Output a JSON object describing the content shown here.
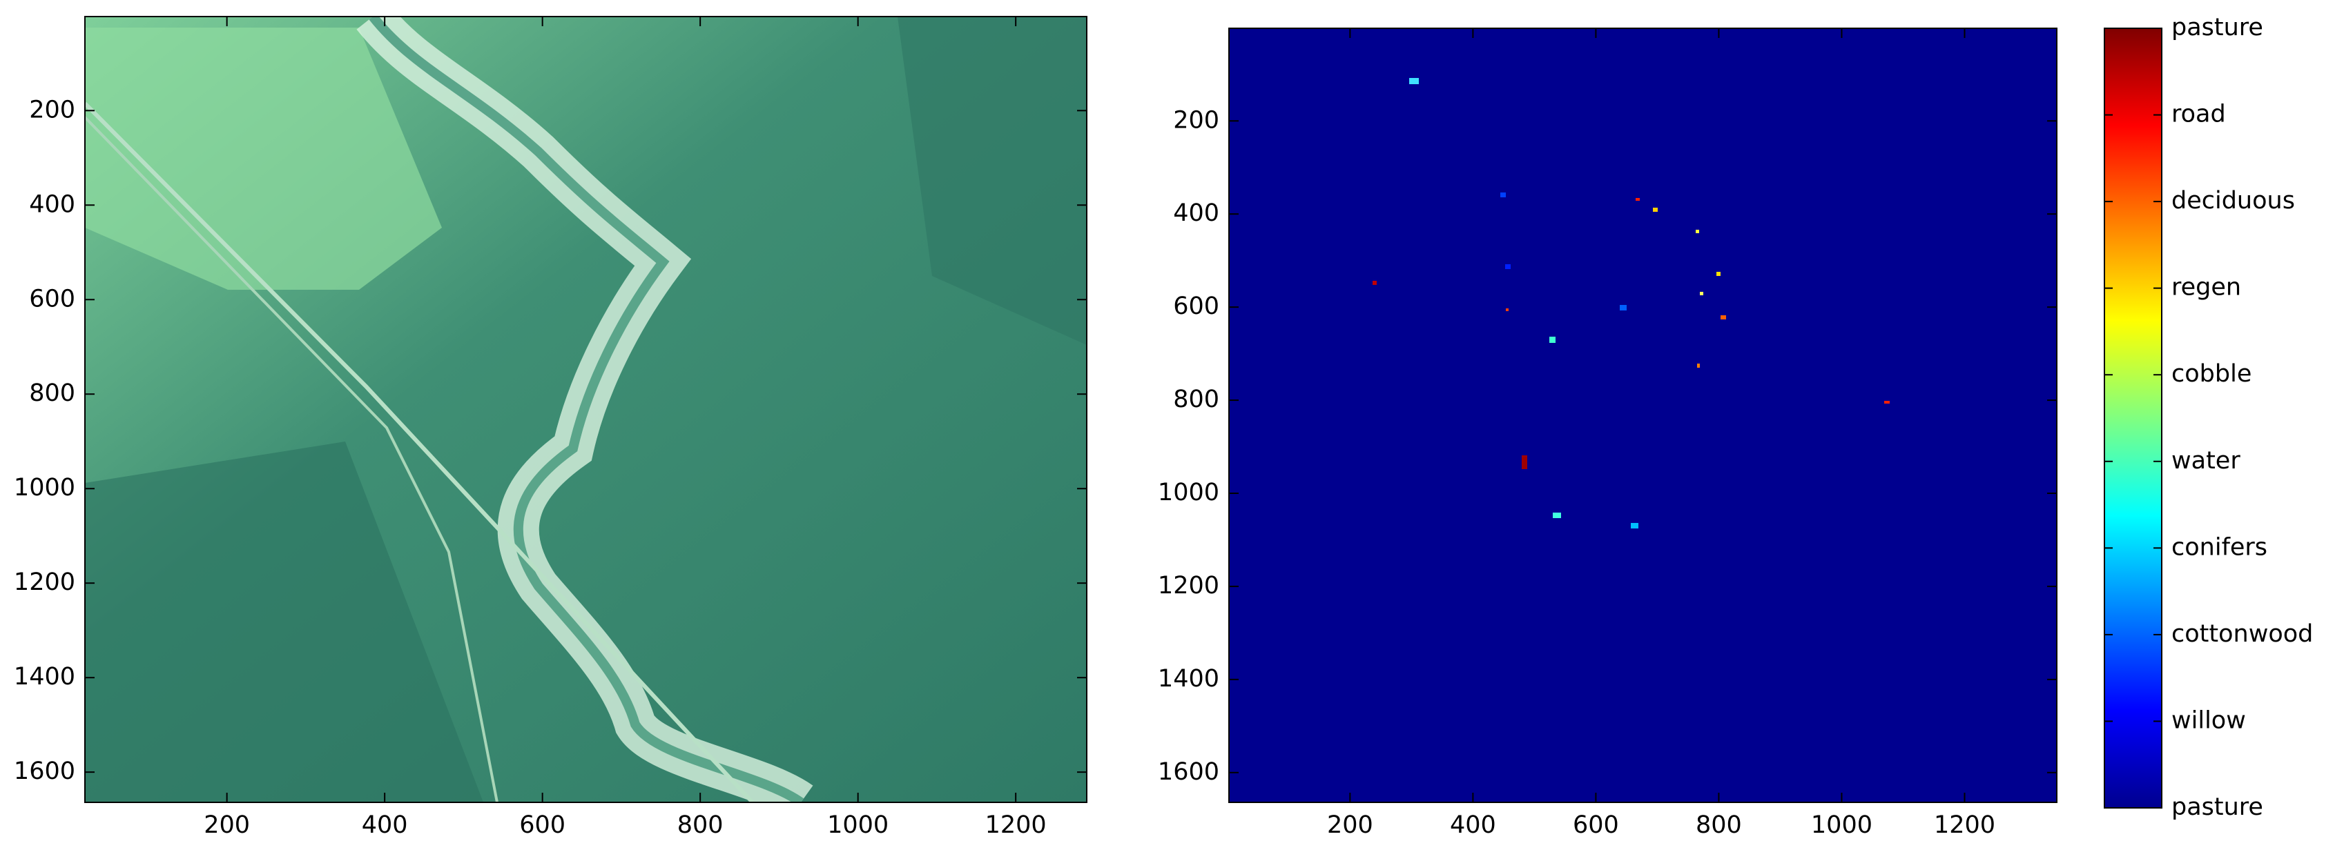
{
  "chart_data": [
    {
      "type": "image",
      "xlim": [
        20,
        1290
      ],
      "ylim": [
        1,
        1664
      ],
      "xticks": [
        200,
        400,
        600,
        800,
        1000,
        1200
      ],
      "yticks": [
        200,
        400,
        600,
        800,
        1000,
        1200,
        1400,
        1600
      ]
    },
    {
      "type": "image",
      "color": "#00008f",
      "xlim": [
        3,
        1350
      ],
      "ylim": [
        1,
        1664
      ],
      "xticks": [
        200,
        400,
        600,
        800,
        1000,
        1200
      ],
      "yticks": [
        200,
        400,
        600,
        800,
        1000,
        1200,
        1400,
        1600
      ],
      "colorbar": {
        "clim": [
          1,
          10
        ],
        "colormap": [
          "#00008f",
          "#0000ff",
          "#0080ff",
          "#00ffff",
          "#80ff80",
          "#ffff00",
          "#ff8000",
          "#ff0000",
          "#800000"
        ],
        "ticks": [
          {
            "value": 1,
            "label": "pasture"
          },
          {
            "value": 2,
            "label": "willow"
          },
          {
            "value": 3,
            "label": "cottonwood"
          },
          {
            "value": 4,
            "label": "conifers"
          },
          {
            "value": 5,
            "label": "water"
          },
          {
            "value": 6,
            "label": "cobble"
          },
          {
            "value": 7,
            "label": "regen"
          },
          {
            "value": 8,
            "label": "deciduous"
          },
          {
            "value": 9,
            "label": "road"
          },
          {
            "value": 10,
            "label": "pasture"
          }
        ]
      }
    }
  ]
}
